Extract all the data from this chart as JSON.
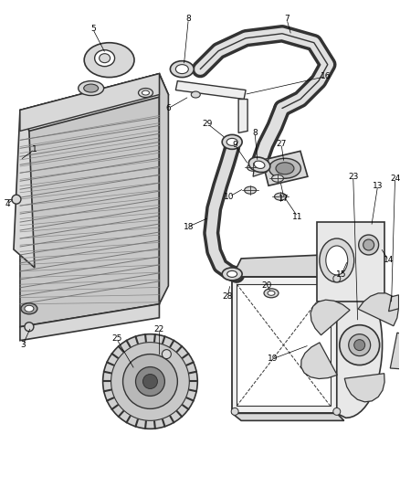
{
  "bg_color": "#ffffff",
  "line_color": "#333333",
  "gray_fill": "#d8d8d8",
  "light_fill": "#eeeeee",
  "dark_fill": "#888888",
  "figsize": [
    4.38,
    5.33
  ],
  "dpi": 100
}
